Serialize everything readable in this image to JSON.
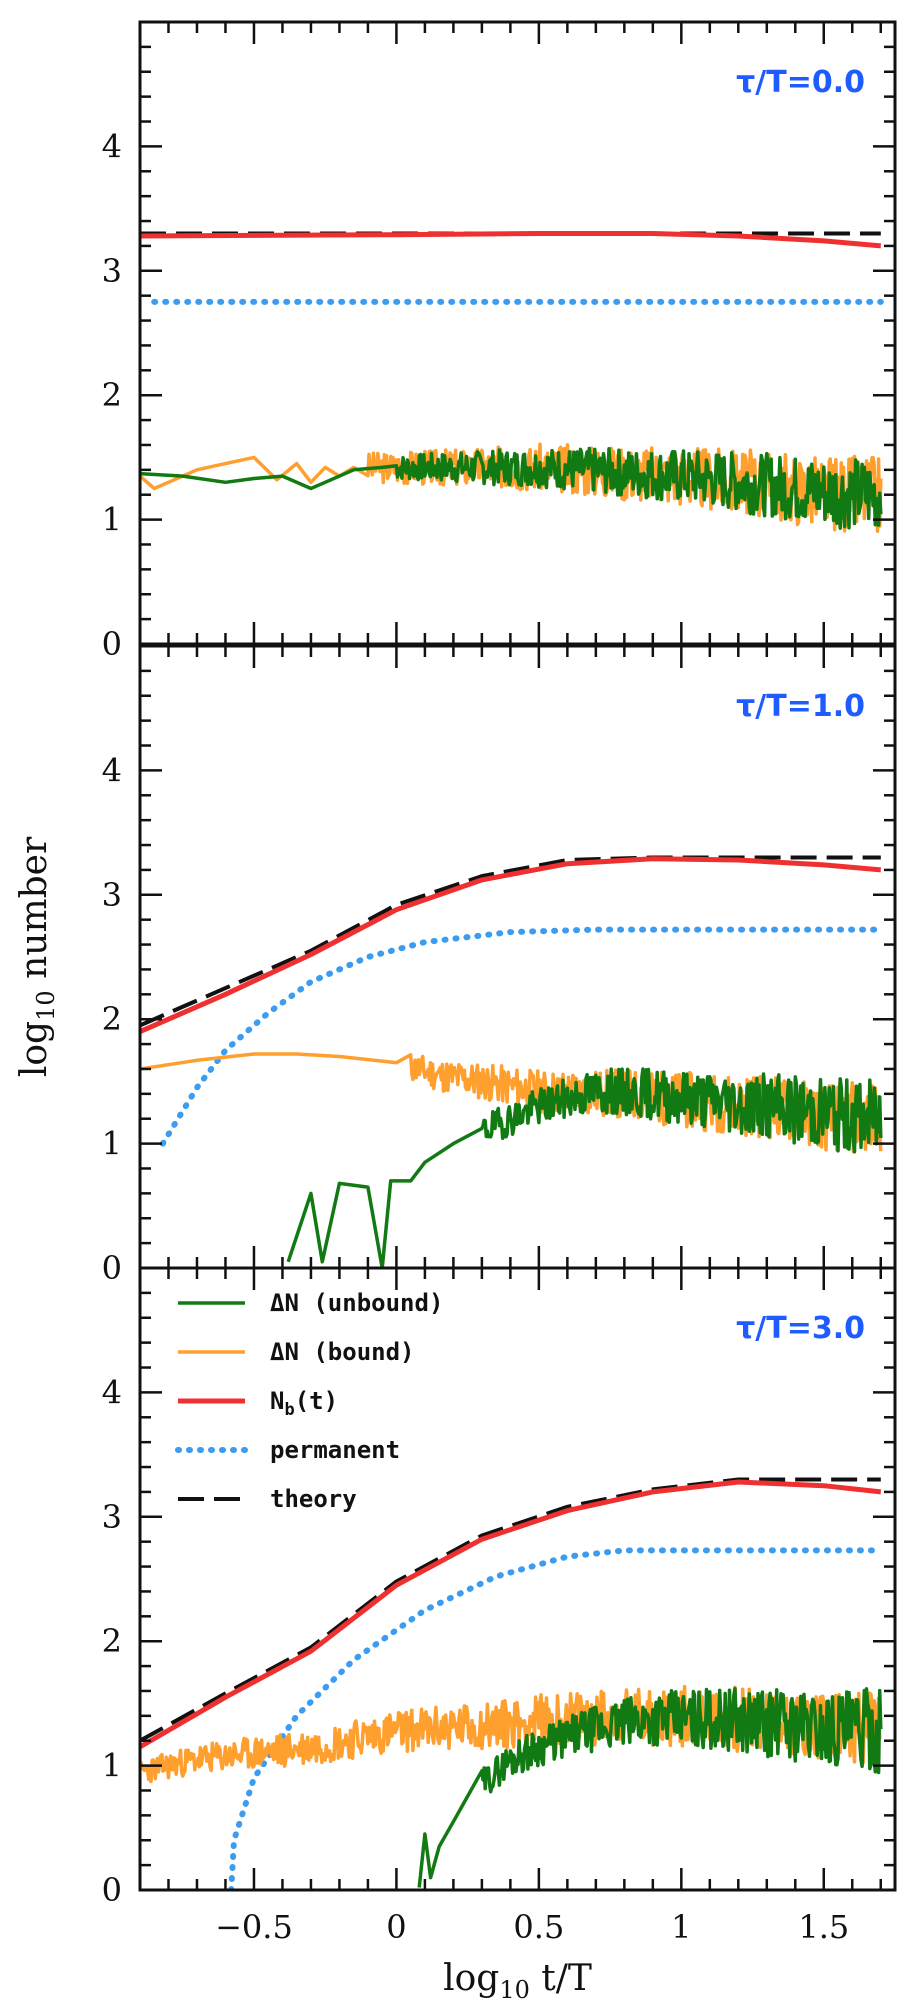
{
  "chart_data": {
    "type": "line",
    "title": "",
    "xlabel": "log10 t/T",
    "ylabel": "log10 number",
    "xlim": [
      -0.9,
      1.75
    ],
    "ylim": [
      0,
      5
    ],
    "x_ticks": [
      -0.5,
      0,
      0.5,
      1,
      1.5
    ],
    "x_tick_labels": [
      "−0.5",
      "0",
      "0.5",
      "1",
      "1.5"
    ],
    "y_ticks": [
      0,
      1,
      2,
      3,
      4
    ],
    "y_tick_labels": [
      "0",
      "1",
      "2",
      "3",
      "4"
    ],
    "colors": {
      "unbound": "#127a12",
      "bound": "#ff9f2e",
      "nb": "#ee3030",
      "permanent": "#3b9cf0",
      "theory": "#111111",
      "panel_label": "#1f5cff"
    },
    "legend": [
      {
        "key": "unbound",
        "label": "ΔN (unbound)",
        "style": "solid"
      },
      {
        "key": "bound",
        "label": "ΔN (bound)",
        "style": "solid"
      },
      {
        "key": "nb",
        "label": "N_b(t)",
        "style": "solid"
      },
      {
        "key": "permanent",
        "label": "permanent",
        "style": "dotted"
      },
      {
        "key": "theory",
        "label": "theory",
        "style": "dashed"
      }
    ],
    "panels": [
      {
        "label": "τ/T=0.0",
        "series": [
          {
            "name": "theory",
            "key": "theory",
            "style": "dashed",
            "points": [
              [
                -0.9,
                3.3
              ],
              [
                1.7,
                3.3
              ]
            ]
          },
          {
            "name": "N_b(t)",
            "key": "nb",
            "style": "solid",
            "points": [
              [
                -0.9,
                3.28
              ],
              [
                0,
                3.29
              ],
              [
                0.5,
                3.3
              ],
              [
                0.9,
                3.3
              ],
              [
                1.2,
                3.28
              ],
              [
                1.5,
                3.24
              ],
              [
                1.7,
                3.2
              ]
            ]
          },
          {
            "name": "permanent",
            "key": "permanent",
            "style": "dotted",
            "points": [
              [
                -0.85,
                2.75
              ],
              [
                1.7,
                2.75
              ]
            ]
          },
          {
            "name": "ΔN (bound)",
            "key": "bound",
            "style": "solid",
            "noise": {
              "start": -0.1,
              "end": 1.7,
              "amp": [
                0.12,
                0.32
              ],
              "seed": 3
            },
            "points": [
              [
                -0.9,
                1.35
              ],
              [
                -0.85,
                1.25
              ],
              [
                -0.8,
                1.3
              ],
              [
                -0.7,
                1.4
              ],
              [
                -0.6,
                1.45
              ],
              [
                -0.5,
                1.5
              ],
              [
                -0.42,
                1.32
              ],
              [
                -0.35,
                1.45
              ],
              [
                -0.3,
                1.3
              ],
              [
                -0.25,
                1.42
              ],
              [
                -0.2,
                1.35
              ],
              [
                -0.15,
                1.42
              ],
              [
                0,
                1.42
              ],
              [
                0.5,
                1.42
              ],
              [
                1,
                1.35
              ],
              [
                1.3,
                1.28
              ],
              [
                1.5,
                1.22
              ],
              [
                1.7,
                1.2
              ]
            ]
          },
          {
            "name": "ΔN (unbound)",
            "key": "unbound",
            "style": "solid",
            "noise": {
              "start": 0.0,
              "end": 1.7,
              "amp": [
                0.1,
                0.3
              ],
              "seed": 7
            },
            "points": [
              [
                -0.9,
                1.37
              ],
              [
                -0.75,
                1.35
              ],
              [
                -0.6,
                1.3
              ],
              [
                -0.5,
                1.33
              ],
              [
                -0.4,
                1.35
              ],
              [
                -0.3,
                1.25
              ],
              [
                -0.25,
                1.3
              ],
              [
                -0.15,
                1.4
              ],
              [
                -0.05,
                1.42
              ],
              [
                0.5,
                1.42
              ],
              [
                1,
                1.35
              ],
              [
                1.3,
                1.28
              ],
              [
                1.5,
                1.22
              ],
              [
                1.7,
                1.2
              ]
            ]
          }
        ]
      },
      {
        "label": "τ/T=1.0",
        "series": [
          {
            "name": "theory",
            "key": "theory",
            "style": "dashed",
            "points": [
              [
                -0.9,
                1.95
              ],
              [
                -0.6,
                2.25
              ],
              [
                -0.3,
                2.55
              ],
              [
                0,
                2.92
              ],
              [
                0.3,
                3.15
              ],
              [
                0.6,
                3.28
              ],
              [
                0.9,
                3.3
              ],
              [
                1.2,
                3.3
              ],
              [
                1.7,
                3.3
              ]
            ]
          },
          {
            "name": "N_b(t)",
            "key": "nb",
            "style": "solid",
            "points": [
              [
                -0.9,
                1.9
              ],
              [
                -0.6,
                2.2
              ],
              [
                -0.3,
                2.52
              ],
              [
                0,
                2.88
              ],
              [
                0.3,
                3.12
              ],
              [
                0.6,
                3.25
              ],
              [
                0.9,
                3.29
              ],
              [
                1.2,
                3.28
              ],
              [
                1.5,
                3.24
              ],
              [
                1.7,
                3.2
              ]
            ]
          },
          {
            "name": "permanent",
            "key": "permanent",
            "style": "dotted",
            "points": [
              [
                -0.82,
                1.0
              ],
              [
                -0.7,
                1.45
              ],
              [
                -0.6,
                1.75
              ],
              [
                -0.45,
                2.05
              ],
              [
                -0.3,
                2.3
              ],
              [
                -0.1,
                2.5
              ],
              [
                0.1,
                2.62
              ],
              [
                0.4,
                2.7
              ],
              [
                0.7,
                2.72
              ],
              [
                1.7,
                2.72
              ]
            ]
          },
          {
            "name": "ΔN (bound)",
            "key": "bound",
            "style": "solid",
            "noise": {
              "start": 0.05,
              "end": 1.7,
              "amp": [
                0.12,
                0.3
              ],
              "seed": 11
            },
            "points": [
              [
                -0.9,
                1.6
              ],
              [
                -0.7,
                1.67
              ],
              [
                -0.5,
                1.72
              ],
              [
                -0.35,
                1.72
              ],
              [
                -0.2,
                1.7
              ],
              [
                0,
                1.65
              ],
              [
                0.15,
                1.55
              ],
              [
                0.3,
                1.5
              ],
              [
                0.5,
                1.42
              ],
              [
                0.8,
                1.4
              ],
              [
                1,
                1.35
              ],
              [
                1.3,
                1.3
              ],
              [
                1.5,
                1.22
              ],
              [
                1.7,
                1.2
              ]
            ]
          },
          {
            "name": "ΔN (unbound)",
            "key": "unbound",
            "style": "solid",
            "noise": {
              "start": 0.3,
              "end": 1.7,
              "amp": [
                0.12,
                0.32
              ],
              "seed": 19
            },
            "points": [
              [
                -0.38,
                0.05
              ],
              [
                -0.3,
                0.6
              ],
              [
                -0.26,
                0.05
              ],
              [
                -0.2,
                0.68
              ],
              [
                -0.1,
                0.65
              ],
              [
                -0.05,
                0.0
              ],
              [
                -0.02,
                0.7
              ],
              [
                0.05,
                0.7
              ],
              [
                0.1,
                0.85
              ],
              [
                0.2,
                1.0
              ],
              [
                0.3,
                1.1
              ],
              [
                0.5,
                1.3
              ],
              [
                0.7,
                1.42
              ],
              [
                0.9,
                1.4
              ],
              [
                1.1,
                1.35
              ],
              [
                1.3,
                1.3
              ],
              [
                1.5,
                1.25
              ],
              [
                1.7,
                1.2
              ]
            ]
          }
        ]
      },
      {
        "label": "τ/T=3.0",
        "series": [
          {
            "name": "theory",
            "key": "theory",
            "style": "dashed",
            "points": [
              [
                -0.9,
                1.2
              ],
              [
                -0.6,
                1.58
              ],
              [
                -0.3,
                1.95
              ],
              [
                0,
                2.48
              ],
              [
                0.3,
                2.85
              ],
              [
                0.6,
                3.08
              ],
              [
                0.9,
                3.22
              ],
              [
                1.2,
                3.3
              ],
              [
                1.7,
                3.3
              ]
            ]
          },
          {
            "name": "N_b(t)",
            "key": "nb",
            "style": "solid",
            "points": [
              [
                -0.9,
                1.15
              ],
              [
                -0.6,
                1.55
              ],
              [
                -0.3,
                1.92
              ],
              [
                0,
                2.45
              ],
              [
                0.3,
                2.82
              ],
              [
                0.6,
                3.05
              ],
              [
                0.9,
                3.2
              ],
              [
                1.2,
                3.28
              ],
              [
                1.5,
                3.25
              ],
              [
                1.7,
                3.2
              ]
            ]
          },
          {
            "name": "permanent",
            "key": "permanent",
            "style": "dotted",
            "points": [
              [
                -0.58,
                0.0
              ],
              [
                -0.57,
                0.4
              ],
              [
                -0.5,
                0.9
              ],
              [
                -0.35,
                1.4
              ],
              [
                -0.15,
                1.85
              ],
              [
                0.1,
                2.25
              ],
              [
                0.35,
                2.52
              ],
              [
                0.6,
                2.68
              ],
              [
                0.8,
                2.73
              ],
              [
                1.7,
                2.73
              ]
            ]
          },
          {
            "name": "ΔN (bound)",
            "key": "bound",
            "style": "solid",
            "noise": {
              "start": -0.9,
              "end": 1.7,
              "amp": [
                0.1,
                0.3
              ],
              "seed": 23
            },
            "points": [
              [
                -0.9,
                0.95
              ],
              [
                -0.7,
                1.05
              ],
              [
                -0.5,
                1.1
              ],
              [
                -0.3,
                1.15
              ],
              [
                0,
                1.28
              ],
              [
                0.3,
                1.32
              ],
              [
                0.6,
                1.38
              ],
              [
                1,
                1.4
              ],
              [
                1.3,
                1.36
              ],
              [
                1.5,
                1.3
              ],
              [
                1.7,
                1.3
              ]
            ]
          },
          {
            "name": "ΔN (unbound)",
            "key": "unbound",
            "style": "solid",
            "noise": {
              "start": 0.3,
              "end": 1.7,
              "amp": [
                0.12,
                0.34
              ],
              "seed": 29
            },
            "points": [
              [
                0.08,
                0.02
              ],
              [
                0.1,
                0.45
              ],
              [
                0.12,
                0.1
              ],
              [
                0.15,
                0.35
              ],
              [
                0.2,
                0.55
              ],
              [
                0.3,
                0.85
              ],
              [
                0.4,
                1.05
              ],
              [
                0.5,
                1.15
              ],
              [
                0.7,
                1.3
              ],
              [
                0.9,
                1.38
              ],
              [
                1.1,
                1.38
              ],
              [
                1.3,
                1.35
              ],
              [
                1.5,
                1.3
              ],
              [
                1.7,
                1.28
              ]
            ]
          }
        ]
      }
    ]
  }
}
